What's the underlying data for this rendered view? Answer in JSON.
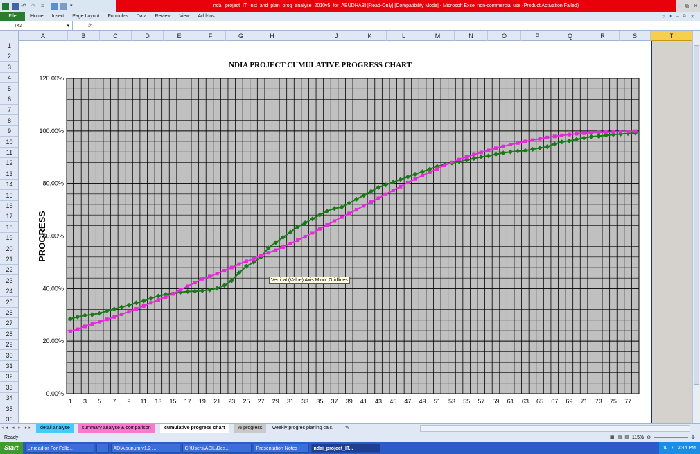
{
  "window": {
    "title": "ndai_project_IT_inst_and_plan_prog_analyse_2010v5_for_ABUDHABI  [Read-Only]  [Compatibility Mode]  -  Microsoft Excel non-commercial use (Product Activation Failed)",
    "controls": [
      "–",
      "⧉",
      "✕"
    ]
  },
  "ribbon": {
    "file": "File",
    "tabs": [
      "Home",
      "Insert",
      "Page Layout",
      "Formulas",
      "Data",
      "Review",
      "View",
      "Add-Ins"
    ]
  },
  "formula_bar": {
    "name_box": "T43",
    "fx": "fx",
    "value": ""
  },
  "columns": [
    "A",
    "B",
    "C",
    "D",
    "E",
    "F",
    "G",
    "H",
    "I",
    "J",
    "K",
    "L",
    "M",
    "N",
    "O",
    "P",
    "Q",
    "R",
    "S",
    "T"
  ],
  "selected_column": "T",
  "rows": [
    "1",
    "2",
    "3",
    "4",
    "5",
    "6",
    "7",
    "8",
    "9",
    "10",
    "11",
    "12",
    "13",
    "14",
    "15",
    "16",
    "17",
    "18",
    "19",
    "20",
    "21",
    "22",
    "23",
    "24",
    "25",
    "26",
    "27",
    "28",
    "29",
    "30",
    "31",
    "32",
    "33",
    "34",
    "35",
    "36"
  ],
  "tooltip": "Vertical (Value) Axis Minor Gridlines",
  "sheet_tabs": [
    {
      "label": "detail analyse",
      "color": "#47c8ff"
    },
    {
      "label": "summary analyse & comparison",
      "color": "#ff78d0"
    },
    {
      "label": "cumulative progress chart",
      "color": "#ffffff"
    },
    {
      "label": "% progress",
      "color": "#c9c9c9"
    },
    {
      "label": "weekly progres planing calc.",
      "color": "#dfe8f4"
    }
  ],
  "status": {
    "ready": "Ready",
    "zoom": "115%"
  },
  "taskbar": {
    "start": "Start",
    "tasks": [
      "Unread or For Follo...",
      "",
      "ADIA sunum v1.2 ...",
      "C:\\Users\\ASIL\\Des...",
      "Presentation Notes",
      "ndai_project_IT..."
    ],
    "time": "2:44 PM"
  },
  "chart_data": {
    "type": "line",
    "title": "NDIA PROJECT CUMULATIVE PROGRESS CHART",
    "ylabel": "PROGRESS",
    "xlabel": "",
    "ylim": [
      0,
      120
    ],
    "yticks": [
      "0.00%",
      "20.00%",
      "40.00%",
      "60.00%",
      "80.00%",
      "100.00%",
      "120.00%"
    ],
    "xticks": [
      "1",
      "3",
      "5",
      "7",
      "9",
      "11",
      "13",
      "15",
      "17",
      "19",
      "21",
      "23",
      "25",
      "27",
      "29",
      "31",
      "33",
      "35",
      "37",
      "39",
      "41",
      "43",
      "45",
      "47",
      "49",
      "51",
      "53",
      "55",
      "57",
      "59",
      "61",
      "63",
      "65",
      "67",
      "69",
      "71",
      "73",
      "75",
      "77"
    ],
    "grid": true,
    "legend": "none",
    "x": [
      1,
      2,
      3,
      4,
      5,
      6,
      7,
      8,
      9,
      10,
      11,
      12,
      13,
      14,
      15,
      16,
      17,
      18,
      19,
      20,
      21,
      22,
      23,
      24,
      25,
      26,
      27,
      28,
      29,
      30,
      31,
      32,
      33,
      34,
      35,
      36,
      37,
      38,
      39,
      40,
      41,
      42,
      43,
      44,
      45,
      46,
      47,
      48,
      49,
      50,
      51,
      52,
      53,
      54,
      55,
      56,
      57,
      58,
      59,
      60,
      61,
      62,
      63,
      64,
      65,
      66,
      67,
      68,
      69,
      70,
      71,
      72,
      73,
      74,
      75,
      76,
      77,
      78
    ],
    "series": [
      {
        "color": "#1a7a1a",
        "values": [
          28.5,
          29.2,
          29.8,
          30.1,
          30.6,
          31.5,
          32.2,
          32.9,
          33.7,
          34.6,
          35.3,
          36.3,
          37.2,
          37.8,
          38.1,
          38.6,
          38.9,
          39.0,
          39.2,
          39.5,
          40.1,
          41.2,
          43.0,
          46.0,
          48.5,
          50.0,
          52.0,
          55.5,
          57.5,
          59.5,
          61.5,
          63.5,
          65.0,
          66.5,
          68.0,
          69.5,
          70.5,
          71.0,
          72.5,
          74.0,
          75.5,
          77.0,
          78.5,
          79.5,
          80.5,
          81.5,
          82.5,
          83.5,
          84.5,
          85.5,
          86.5,
          87.2,
          87.8,
          88.3,
          88.8,
          89.5,
          90.1,
          90.5,
          91.1,
          91.6,
          92.0,
          92.3,
          92.5,
          93.0,
          93.5,
          94.0,
          95.0,
          95.8,
          96.2,
          96.8,
          97.3,
          97.8,
          98.0,
          98.3,
          98.6,
          98.8,
          99.0,
          99.2
        ]
      },
      {
        "color": "#e32bd6",
        "values": [
          23.7,
          24.5,
          25.6,
          26.5,
          27.4,
          28.3,
          29.2,
          30.2,
          31.2,
          32.3,
          33.4,
          34.6,
          35.7,
          36.8,
          38.0,
          39.5,
          40.9,
          42.3,
          43.7,
          44.6,
          45.7,
          46.8,
          48.0,
          49.3,
          50.4,
          51.3,
          52.6,
          53.6,
          54.6,
          55.8,
          57.1,
          58.4,
          59.7,
          61.2,
          62.7,
          64.2,
          65.7,
          67.2,
          68.6,
          70.0,
          71.5,
          72.9,
          74.4,
          75.9,
          77.4,
          78.8,
          80.3,
          81.7,
          83.0,
          84.3,
          85.6,
          86.9,
          88.0,
          89.1,
          90.1,
          91.0,
          91.8,
          92.6,
          93.4,
          94.1,
          94.8,
          95.4,
          96.0,
          96.5,
          97.0,
          97.5,
          97.9,
          98.3,
          98.6,
          98.9,
          99.1,
          99.3,
          99.4,
          99.5,
          99.6,
          99.7,
          99.8,
          99.9
        ]
      }
    ]
  }
}
